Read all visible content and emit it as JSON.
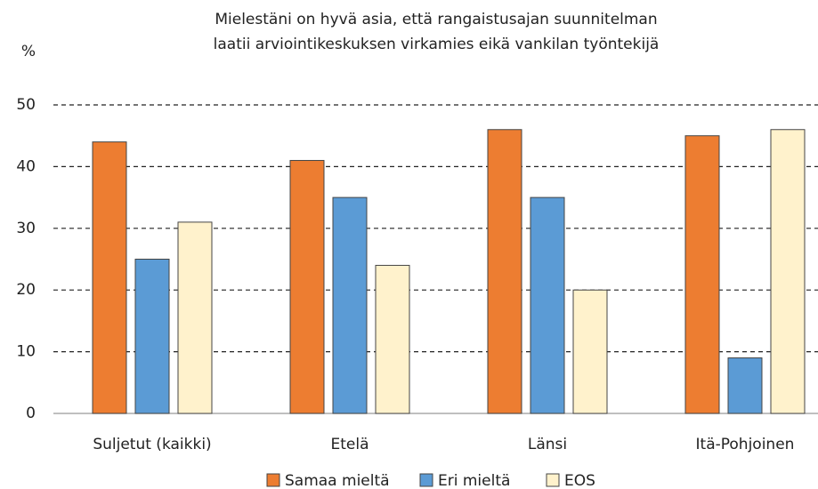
{
  "chart_data": {
    "type": "bar",
    "title": [
      "Mielestäni on hyvä asia, että rangaistusajan suunnitelman",
      "laatii arviointikeskuksen virkamies eikä vankilan työntekijä"
    ],
    "y_label": "%",
    "categories": [
      "Suljetut (kaikki)",
      "Etelä",
      "Länsi",
      "Itä-Pohjoinen"
    ],
    "series": [
      {
        "name": "Samaa mieltä",
        "color": "#ed7d31",
        "values": [
          44,
          41,
          46,
          45
        ]
      },
      {
        "name": "Eri mieltä",
        "color": "#5b9bd5",
        "values": [
          25,
          35,
          35,
          9
        ]
      },
      {
        "name": "EOS",
        "color": "#fff2cc",
        "values": [
          31,
          24,
          20,
          46
        ]
      }
    ],
    "ylim": [
      0,
      50
    ],
    "yticks": [
      0,
      10,
      20,
      30,
      40,
      50
    ],
    "grid": true,
    "legend": "bottom"
  }
}
